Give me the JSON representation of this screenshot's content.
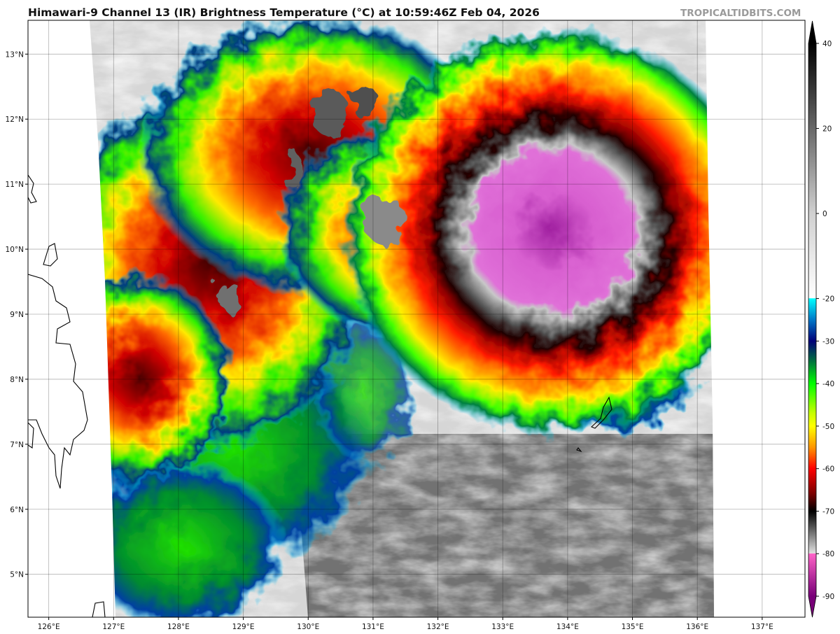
{
  "header": {
    "title": "Himawari-9 Channel 13 (IR) Brightness Temperature (°C) at 10:59:46Z Feb 04, 2026",
    "brand": "TROPICALTIDBITS.COM"
  },
  "map": {
    "lon_range": [
      125.68,
      137.66
    ],
    "lat_range": [
      4.34,
      13.52
    ],
    "lon_ticks": [
      "126°E",
      "127°E",
      "128°E",
      "129°E",
      "130°E",
      "131°E",
      "132°E",
      "133°E",
      "134°E",
      "135°E",
      "136°E",
      "137°E"
    ],
    "lat_ticks": [
      "5°N",
      "6°N",
      "7°N",
      "8°N",
      "9°N",
      "10°N",
      "11°N",
      "12°N",
      "13°N"
    ],
    "grid": true
  },
  "colorbar": {
    "range": [
      -90,
      40
    ],
    "ticks": [
      "40",
      "20",
      "0",
      "-20",
      "-30",
      "-40",
      "-50",
      "-60",
      "-70",
      "-80",
      "-90"
    ],
    "tick_values": [
      40,
      20,
      0,
      -20,
      -30,
      -40,
      -50,
      -60,
      -70,
      -80,
      -90
    ],
    "stops": [
      [
        40,
        "#000000"
      ],
      [
        0,
        "#d0d0d0"
      ],
      [
        -19.9,
        "#ffffff"
      ],
      [
        -20,
        "#00ffff"
      ],
      [
        -25,
        "#0078c8"
      ],
      [
        -30,
        "#000078"
      ],
      [
        -35,
        "#00783c"
      ],
      [
        -40,
        "#00ff00"
      ],
      [
        -47,
        "#c8ff00"
      ],
      [
        -50,
        "#ffff00"
      ],
      [
        -55,
        "#ff9600"
      ],
      [
        -60,
        "#ff0000"
      ],
      [
        -66,
        "#780000"
      ],
      [
        -70,
        "#000000"
      ],
      [
        -79.9,
        "#e0e0e0"
      ],
      [
        -80,
        "#ff64c8"
      ],
      [
        -90,
        "#780078"
      ]
    ]
  }
}
